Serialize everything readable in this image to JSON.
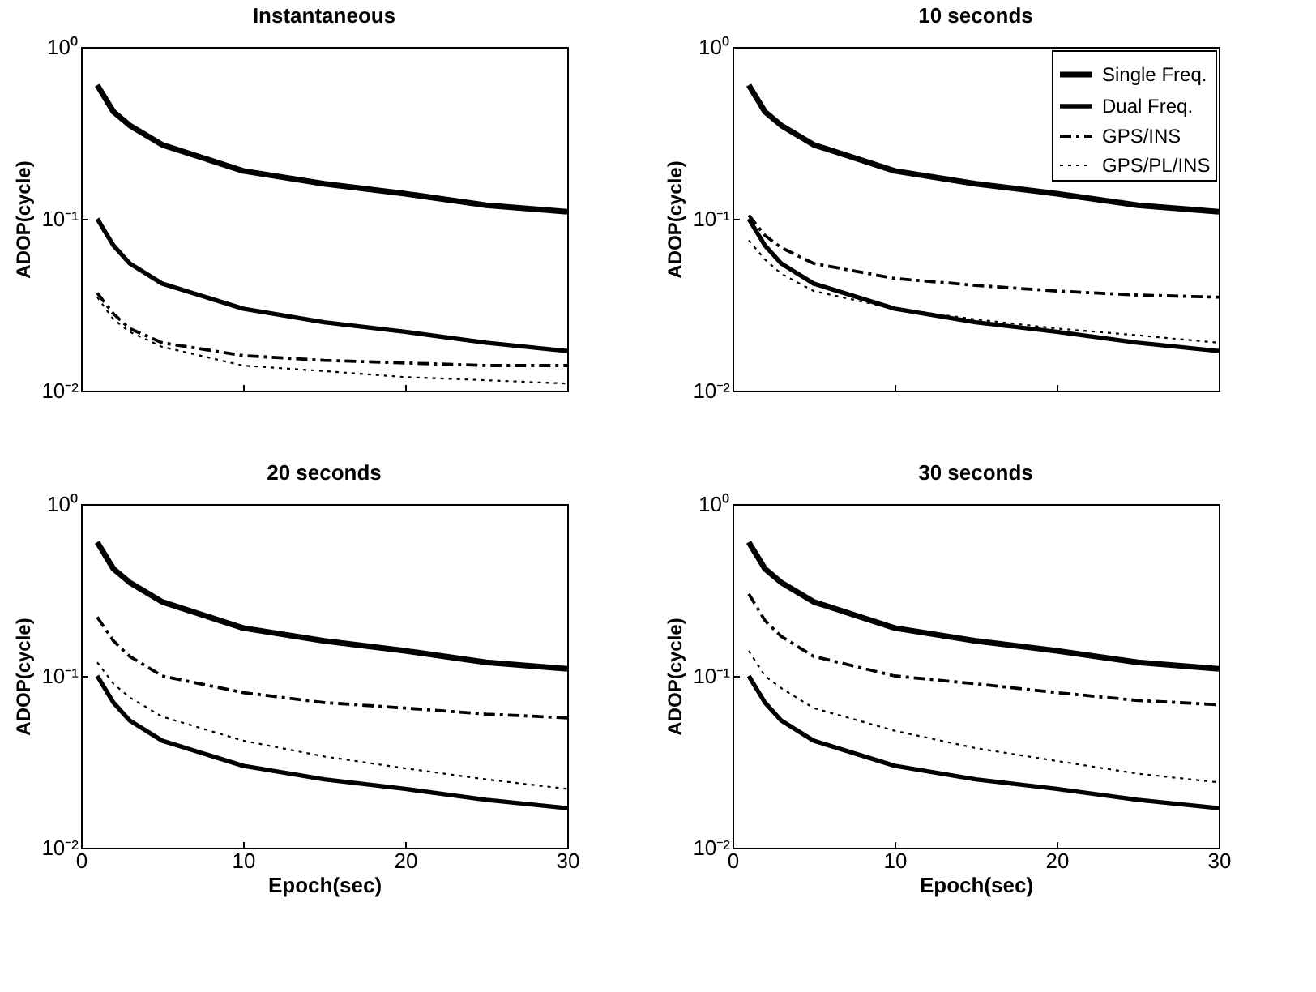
{
  "chart_data": [
    {
      "type": "line",
      "title": "Instantaneous",
      "ylabel": "ADOP(cycle)",
      "x": [
        1,
        2,
        3,
        5,
        10,
        15,
        20,
        25,
        30
      ],
      "xlim": [
        0,
        30
      ],
      "xticks": [
        0,
        10,
        20,
        30
      ],
      "ylim": [
        0.01,
        1
      ],
      "yticks": [
        {
          "value": 0.01,
          "label": "10⁻²"
        },
        {
          "value": 0.1,
          "label": "10⁻¹"
        },
        {
          "value": 1,
          "label": "10⁰"
        }
      ],
      "log": "y",
      "grid": false,
      "legend": false,
      "tick_labels": "y",
      "series": [
        {
          "color": "#000000",
          "line_style": "solid",
          "values": [
            0.6,
            0.42,
            0.35,
            0.27,
            0.19,
            0.16,
            0.14,
            0.12,
            0.11
          ]
        },
        {
          "color": "#000000",
          "line_style": "solid",
          "values": [
            0.1,
            0.07,
            0.055,
            0.042,
            0.03,
            0.025,
            0.022,
            0.019,
            0.017
          ]
        },
        {
          "color": "#000000",
          "line_style": "dashdot",
          "values": [
            0.037,
            0.028,
            0.023,
            0.019,
            0.016,
            0.015,
            0.0145,
            0.014,
            0.014
          ]
        },
        {
          "color": "#000000",
          "line_style": "dotted",
          "values": [
            0.035,
            0.026,
            0.022,
            0.018,
            0.014,
            0.013,
            0.012,
            0.0115,
            0.011
          ]
        }
      ]
    },
    {
      "type": "line",
      "title": "10 seconds",
      "ylabel": "ADOP(cycle)",
      "x": [
        1,
        2,
        3,
        5,
        10,
        15,
        20,
        25,
        30
      ],
      "xlim": [
        0,
        30
      ],
      "xticks": [
        0,
        10,
        20,
        30
      ],
      "ylim": [
        0.01,
        1
      ],
      "yticks": [
        {
          "value": 0.01,
          "label": "10⁻²"
        },
        {
          "value": 0.1,
          "label": "10⁻¹"
        },
        {
          "value": 1,
          "label": "10⁰"
        }
      ],
      "log": "y",
      "grid": false,
      "legend": "top right",
      "tick_labels": "y",
      "series": [
        {
          "name": "Single Freq.",
          "color": "#000000",
          "line_style": "solid",
          "values": [
            0.6,
            0.42,
            0.35,
            0.27,
            0.19,
            0.16,
            0.14,
            0.12,
            0.11
          ]
        },
        {
          "name": "Dual Freq.",
          "color": "#000000",
          "line_style": "solid",
          "values": [
            0.1,
            0.07,
            0.055,
            0.042,
            0.03,
            0.025,
            0.022,
            0.019,
            0.017
          ]
        },
        {
          "name": "GPS/INS",
          "color": "#000000",
          "line_style": "dashdot",
          "values": [
            0.105,
            0.08,
            0.068,
            0.055,
            0.045,
            0.041,
            0.038,
            0.036,
            0.035
          ]
        },
        {
          "name": "GPS/PL/INS",
          "color": "#000000",
          "line_style": "dotted",
          "values": [
            0.075,
            0.058,
            0.048,
            0.038,
            0.03,
            0.026,
            0.023,
            0.021,
            0.019
          ]
        }
      ]
    },
    {
      "type": "line",
      "title": "20 seconds",
      "xlabel": "Epoch(sec)",
      "ylabel": "ADOP(cycle)",
      "x": [
        1,
        2,
        3,
        5,
        10,
        15,
        20,
        25,
        30
      ],
      "xlim": [
        0,
        30
      ],
      "xticks": [
        0,
        10,
        20,
        30
      ],
      "ylim": [
        0.01,
        1
      ],
      "yticks": [
        {
          "value": 0.01,
          "label": "10⁻²"
        },
        {
          "value": 0.1,
          "label": "10⁻¹"
        },
        {
          "value": 1,
          "label": "10⁰"
        }
      ],
      "log": "y",
      "grid": false,
      "legend": false,
      "series": [
        {
          "color": "#000000",
          "line_style": "solid",
          "values": [
            0.6,
            0.42,
            0.35,
            0.27,
            0.19,
            0.16,
            0.14,
            0.12,
            0.11
          ]
        },
        {
          "color": "#000000",
          "line_style": "solid",
          "values": [
            0.1,
            0.07,
            0.055,
            0.042,
            0.03,
            0.025,
            0.022,
            0.019,
            0.017
          ]
        },
        {
          "color": "#000000",
          "line_style": "dashdot",
          "values": [
            0.22,
            0.16,
            0.13,
            0.1,
            0.08,
            0.07,
            0.065,
            0.06,
            0.057
          ]
        },
        {
          "color": "#000000",
          "line_style": "dotted",
          "values": [
            0.12,
            0.09,
            0.075,
            0.058,
            0.042,
            0.034,
            0.029,
            0.025,
            0.022
          ]
        }
      ]
    },
    {
      "type": "line",
      "title": "30 seconds",
      "xlabel": "Epoch(sec)",
      "ylabel": "ADOP(cycle)",
      "x": [
        1,
        2,
        3,
        5,
        10,
        15,
        20,
        25,
        30
      ],
      "xlim": [
        0,
        30
      ],
      "xticks": [
        0,
        10,
        20,
        30
      ],
      "ylim": [
        0.01,
        1
      ],
      "yticks": [
        {
          "value": 0.01,
          "label": "10⁻²"
        },
        {
          "value": 0.1,
          "label": "10⁻¹"
        },
        {
          "value": 1,
          "label": "10⁰"
        }
      ],
      "log": "y",
      "grid": false,
      "legend": false,
      "series": [
        {
          "color": "#000000",
          "line_style": "solid",
          "values": [
            0.6,
            0.42,
            0.35,
            0.27,
            0.19,
            0.16,
            0.14,
            0.12,
            0.11
          ]
        },
        {
          "color": "#000000",
          "line_style": "solid",
          "values": [
            0.1,
            0.07,
            0.055,
            0.042,
            0.03,
            0.025,
            0.022,
            0.019,
            0.017
          ]
        },
        {
          "color": "#000000",
          "line_style": "dashdot",
          "values": [
            0.3,
            0.21,
            0.17,
            0.13,
            0.1,
            0.09,
            0.08,
            0.072,
            0.068
          ]
        },
        {
          "color": "#000000",
          "line_style": "dotted",
          "values": [
            0.14,
            0.1,
            0.085,
            0.065,
            0.048,
            0.038,
            0.032,
            0.027,
            0.024
          ]
        }
      ]
    }
  ]
}
